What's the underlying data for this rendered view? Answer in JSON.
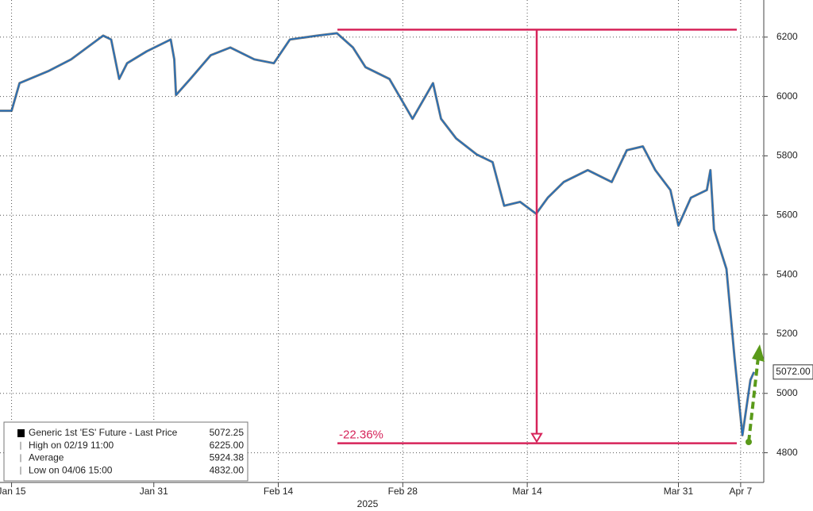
{
  "chart_data": {
    "type": "line",
    "xlabel": "2025",
    "x": [
      13.7,
      15.0,
      15.9,
      19.1,
      21.7,
      25.3,
      26.2,
      27.1,
      28.0,
      30.2,
      32.9,
      33.3,
      33.5,
      35.1,
      37.4,
      39.6,
      42.3,
      44.5,
      46.3,
      49.4,
      51.6,
      53.4,
      54.8,
      57.5,
      60.1,
      62.4,
      63.3,
      65.0,
      67.3,
      69.1,
      70.4,
      72.2,
      74.0,
      75.3,
      77.1,
      79.8,
      82.5,
      84.2,
      86.0,
      87.4,
      89.1,
      90.0,
      91.4,
      93.2,
      93.6,
      94.0,
      95.4,
      96.3,
      97.2,
      98.1,
      98.5
    ],
    "series": [
      {
        "name": "Generic 1st 'ES' Future - Last Price",
        "color": "#1f6fbf",
        "values": [
          5952,
          5952,
          6045,
          6085,
          6125,
          6205,
          6192,
          6059,
          6112,
          6152,
          6192,
          6125,
          6005,
          6059,
          6139,
          6165,
          6125,
          6112,
          6192,
          6205,
          6213,
          6165,
          6099,
          6059,
          5925,
          6045,
          5925,
          5859,
          5805,
          5779,
          5632,
          5645,
          5605,
          5659,
          5712,
          5752,
          5712,
          5819,
          5832,
          5752,
          5685,
          5565,
          5659,
          5685,
          5752,
          5552,
          5419,
          5125,
          4859,
          5045,
          5072
        ]
      }
    ],
    "xlim": [
      13.7,
      99.6
    ],
    "ylim": [
      4700,
      6325
    ],
    "xticks": [
      {
        "value": 15,
        "label": "Jan 15"
      },
      {
        "value": 31,
        "label": "Jan 31"
      },
      {
        "value": 45,
        "label": "Feb 14"
      },
      {
        "value": 59,
        "label": "Feb 28"
      },
      {
        "value": 73,
        "label": "Mar 14"
      },
      {
        "value": 90,
        "label": "Mar 31"
      },
      {
        "value": 97,
        "label": "Apr 7"
      }
    ],
    "yticks": [
      4800,
      5000,
      5200,
      5400,
      5600,
      5800,
      6000,
      6200
    ],
    "grid": true,
    "legend_items": [
      "Generic 1st 'ES' Future - Last Price",
      "High on 02/19 11:00",
      "Average",
      "Low on 04/06 15:00"
    ],
    "legend_values": [
      5072.25,
      6225,
      5924.38,
      4832
    ],
    "legend_value_labels": [
      "5072.25",
      "6225.00",
      "5924.38",
      "4832.00"
    ],
    "last_price": {
      "value": 5072,
      "label": "5072.00"
    },
    "annotation": "-22.36%",
    "reference_color": "#d6245a"
  }
}
